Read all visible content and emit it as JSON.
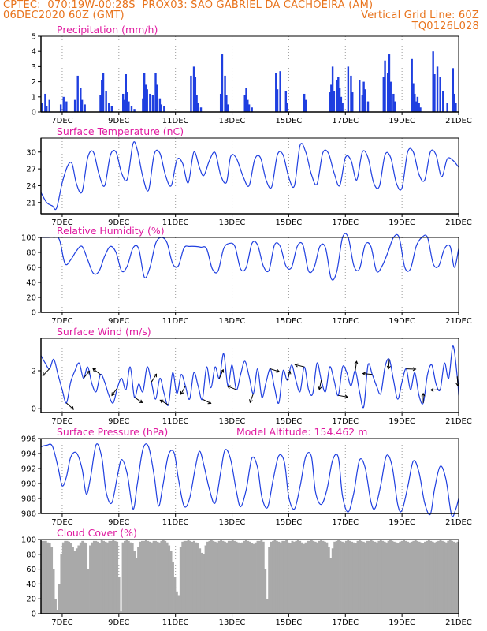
{
  "header": {
    "line1_left": "CPTEC:  070:19W-00:28S  PROX03: SAO GABRIEL DA CACHOEIRA (AM)",
    "line2_left": "06DEC2020 60Z (GMT)",
    "line2_right": "Vertical Grid Line: 60Z",
    "line3_right": "TQ0126L028"
  },
  "colors": {
    "line": "#1f3fe0",
    "cloud": "#a9a9a9",
    "title": "#e01aa0",
    "header": "#e8731c",
    "grid": "#9a9a9a"
  },
  "x_axis": {
    "start_day": 6.25,
    "end_day": 21.0,
    "tick_labels": [
      "7DEC",
      "9DEC",
      "11DEC",
      "13DEC",
      "15DEC",
      "17DEC",
      "19DEC",
      "21DEC"
    ],
    "tick_days": [
      7,
      9,
      11,
      13,
      15,
      17,
      19,
      21
    ]
  },
  "chart_data": [
    {
      "type": "bar",
      "title": "Precipitation (mm/h)",
      "ylim": [
        0,
        5
      ],
      "yticks": [
        0,
        1,
        2,
        3,
        4,
        5
      ],
      "x": [
        6.3,
        6.4,
        6.45,
        6.55,
        6.95,
        7.05,
        7.15,
        7.45,
        7.55,
        7.65,
        7.7,
        7.8,
        8.35,
        8.4,
        8.45,
        8.55,
        8.65,
        8.75,
        9.15,
        9.2,
        9.25,
        9.3,
        9.35,
        9.45,
        9.55,
        9.85,
        9.9,
        9.95,
        10.0,
        10.1,
        10.2,
        10.3,
        10.35,
        10.45,
        10.5,
        10.6,
        11.55,
        11.65,
        11.7,
        11.75,
        11.8,
        11.9,
        12.6,
        12.65,
        12.75,
        12.8,
        12.85,
        13.45,
        13.5,
        13.55,
        13.6,
        13.7,
        14.55,
        14.6,
        14.7,
        14.9,
        14.95,
        15.55,
        15.6,
        16.45,
        16.5,
        16.55,
        16.6,
        16.7,
        16.75,
        16.8,
        16.85,
        16.9,
        17.1,
        17.2,
        17.25,
        17.5,
        17.6,
        17.65,
        17.7,
        17.8,
        18.35,
        18.4,
        18.5,
        18.55,
        18.6,
        18.7,
        18.75,
        19.35,
        19.4,
        19.45,
        19.5,
        19.55,
        19.6,
        19.65,
        20.1,
        20.15,
        20.25,
        20.35,
        20.45,
        20.6,
        20.8,
        20.85,
        20.9
      ],
      "values": [
        0.6,
        1.2,
        0.4,
        0.8,
        0.5,
        1.0,
        0.7,
        0.8,
        2.4,
        1.6,
        0.8,
        0.5,
        1.1,
        2.1,
        2.6,
        1.4,
        0.6,
        0.4,
        1.2,
        0.8,
        2.5,
        1.3,
        0.7,
        0.4,
        0.2,
        0.9,
        2.6,
        1.8,
        1.5,
        1.2,
        1.1,
        2.6,
        1.8,
        0.9,
        0.5,
        0.4,
        2.4,
        3.0,
        2.3,
        1.1,
        0.6,
        0.3,
        1.2,
        3.8,
        2.4,
        1.1,
        0.5,
        1.1,
        1.6,
        0.8,
        0.5,
        0.3,
        2.6,
        1.5,
        2.7,
        1.4,
        0.6,
        1.2,
        0.8,
        1.3,
        1.8,
        3.0,
        1.4,
        2.1,
        2.3,
        1.6,
        1.0,
        0.6,
        3.0,
        2.4,
        1.3,
        2.1,
        1.1,
        2.0,
        1.5,
        0.7,
        2.3,
        3.4,
        2.6,
        3.8,
        2.0,
        1.2,
        0.7,
        3.5,
        1.9,
        1.2,
        0.7,
        1.0,
        0.6,
        0.3,
        4.0,
        2.5,
        3.0,
        2.3,
        1.4,
        0.6,
        2.9,
        1.2,
        0.6
      ]
    },
    {
      "type": "line",
      "title": "Surface Temperature (nC)",
      "ylim": [
        19,
        32.5
      ],
      "yticks": [
        21,
        24,
        27,
        30
      ],
      "x": [
        6.25,
        6.45,
        6.65,
        6.8,
        7.0,
        7.2,
        7.35,
        7.5,
        7.7,
        7.9,
        8.1,
        8.3,
        8.5,
        8.7,
        8.9,
        9.1,
        9.3,
        9.5,
        9.65,
        9.85,
        10.05,
        10.25,
        10.45,
        10.65,
        10.85,
        11.05,
        11.25,
        11.45,
        11.65,
        11.85,
        12.0,
        12.2,
        12.4,
        12.6,
        12.8,
        12.95,
        13.15,
        13.4,
        13.6,
        13.8,
        14.0,
        14.2,
        14.4,
        14.6,
        14.8,
        15.0,
        15.2,
        15.4,
        15.6,
        15.8,
        16.0,
        16.2,
        16.4,
        16.6,
        16.8,
        17.0,
        17.2,
        17.4,
        17.6,
        17.8,
        18.0,
        18.2,
        18.4,
        18.6,
        18.8,
        19.0,
        19.2,
        19.4,
        19.6,
        19.8,
        20.0,
        20.2,
        20.4,
        20.6,
        20.8,
        21.0
      ],
      "values": [
        22.8,
        21.0,
        20.4,
        20.0,
        24.5,
        27.6,
        27.9,
        24.4,
        22.9,
        29.0,
        30.0,
        26.0,
        24.0,
        29.4,
        30.0,
        26.2,
        25.2,
        31.5,
        30.4,
        25.5,
        23.2,
        29.6,
        29.8,
        25.8,
        24.0,
        28.6,
        28.0,
        24.5,
        30.0,
        27.2,
        25.8,
        28.5,
        29.9,
        25.8,
        24.6,
        29.2,
        28.9,
        25.5,
        24.0,
        28.7,
        29.0,
        25.0,
        23.8,
        29.5,
        29.5,
        25.5,
        24.0,
        31.2,
        30.0,
        26.0,
        24.3,
        29.8,
        29.8,
        26.3,
        24.0,
        29.0,
        28.5,
        25.0,
        30.0,
        29.0,
        24.5,
        23.9,
        29.5,
        29.0,
        24.5,
        23.6,
        30.0,
        30.0,
        26.0,
        25.0,
        30.0,
        29.5,
        25.6,
        28.8,
        28.5,
        27.3
      ]
    },
    {
      "type": "line",
      "title": "Relative Humidity (%)",
      "ylim": [
        0,
        100
      ],
      "yticks": [
        0,
        20,
        40,
        60,
        80,
        100
      ],
      "x": [
        6.25,
        6.5,
        6.7,
        6.9,
        7.1,
        7.3,
        7.5,
        7.7,
        7.9,
        8.1,
        8.3,
        8.5,
        8.7,
        8.9,
        9.1,
        9.3,
        9.5,
        9.7,
        9.9,
        10.1,
        10.3,
        10.5,
        10.7,
        10.9,
        11.1,
        11.3,
        11.5,
        11.7,
        11.9,
        12.1,
        12.3,
        12.5,
        12.7,
        12.9,
        13.1,
        13.3,
        13.5,
        13.7,
        13.9,
        14.1,
        14.3,
        14.5,
        14.7,
        14.9,
        15.1,
        15.3,
        15.5,
        15.7,
        15.9,
        16.1,
        16.3,
        16.5,
        16.7,
        16.9,
        17.1,
        17.3,
        17.5,
        17.7,
        17.9,
        18.1,
        18.3,
        18.5,
        18.7,
        18.9,
        19.1,
        19.3,
        19.5,
        19.7,
        19.9,
        20.1,
        20.3,
        20.5,
        20.7,
        20.85,
        21.0
      ],
      "values": [
        100,
        100,
        100,
        97,
        65,
        70,
        82,
        88,
        70,
        52,
        55,
        75,
        88,
        80,
        55,
        62,
        86,
        85,
        47,
        60,
        92,
        100,
        93,
        65,
        62,
        86,
        88,
        88,
        87,
        85,
        58,
        55,
        85,
        92,
        88,
        58,
        60,
        92,
        90,
        62,
        56,
        90,
        88,
        62,
        60,
        88,
        90,
        55,
        60,
        88,
        86,
        45,
        55,
        100,
        100,
        62,
        58,
        90,
        88,
        55,
        62,
        80,
        100,
        100,
        60,
        58,
        88,
        100,
        100,
        65,
        62,
        85,
        88,
        60,
        85
      ]
    },
    {
      "type": "line",
      "title": "Surface Wind (m/s)",
      "ylim": [
        -0.2,
        3.7
      ],
      "yticks": [
        0,
        2
      ],
      "x": [
        6.25,
        6.4,
        6.55,
        6.7,
        6.85,
        7.0,
        7.15,
        7.3,
        7.45,
        7.6,
        7.75,
        7.9,
        8.05,
        8.2,
        8.35,
        8.5,
        8.65,
        8.8,
        8.95,
        9.1,
        9.25,
        9.4,
        9.55,
        9.7,
        9.85,
        10.0,
        10.15,
        10.3,
        10.45,
        10.6,
        10.75,
        10.9,
        11.05,
        11.2,
        11.35,
        11.5,
        11.65,
        11.8,
        11.95,
        12.1,
        12.25,
        12.4,
        12.55,
        12.7,
        12.85,
        13.0,
        13.15,
        13.3,
        13.45,
        13.6,
        13.75,
        13.9,
        14.05,
        14.2,
        14.35,
        14.5,
        14.65,
        14.8,
        14.95,
        15.1,
        15.25,
        15.4,
        15.55,
        15.7,
        15.85,
        16.0,
        16.15,
        16.3,
        16.45,
        16.6,
        16.75,
        16.9,
        17.05,
        17.2,
        17.35,
        17.5,
        17.65,
        17.8,
        17.95,
        18.1,
        18.25,
        18.4,
        18.55,
        18.7,
        18.85,
        19.0,
        19.15,
        19.3,
        19.45,
        19.6,
        19.75,
        19.9,
        20.05,
        20.2,
        20.35,
        20.5,
        20.65,
        20.8,
        20.95,
        21.0
      ],
      "values": [
        2.8,
        2.4,
        2.1,
        2.6,
        1.8,
        1.0,
        0.3,
        1.4,
        2.0,
        2.4,
        1.6,
        2.2,
        1.3,
        0.9,
        1.8,
        1.4,
        0.7,
        0.3,
        1.1,
        1.6,
        1.0,
        2.2,
        0.6,
        1.3,
        0.9,
        2.2,
        1.4,
        0.5,
        1.6,
        0.8,
        0.2,
        1.9,
        0.8,
        1.8,
        1.2,
        0.5,
        1.9,
        1.2,
        0.5,
        2.2,
        1.1,
        2.2,
        1.6,
        2.9,
        1.2,
        2.3,
        1.0,
        1.8,
        2.5,
        1.7,
        0.8,
        2.1,
        0.6,
        1.4,
        2.1,
        1.1,
        0.3,
        2.0,
        1.5,
        2.3,
        1.5,
        0.9,
        2.2,
        1.0,
        0.8,
        2.4,
        1.5,
        0.9,
        2.2,
        1.5,
        0.7,
        2.2,
        1.9,
        1.2,
        2.0,
        0.9,
        0.1,
        2.3,
        1.8,
        1.2,
        0.8,
        2.2,
        2.6,
        1.5,
        0.5,
        1.4,
        2.1,
        1.0,
        1.9,
        0.7,
        0.3,
        1.8,
        2.3,
        1.3,
        1.0,
        2.4,
        1.6,
        3.3,
        1.7,
        0.7
      ]
    },
    {
      "type": "line",
      "title": "Surface Pressure (hPa)",
      "annotation": "Model Altitude: 154.462 m",
      "ylim": [
        986,
        996
      ],
      "yticks": [
        986,
        988,
        990,
        992,
        994,
        996
      ],
      "x": [
        6.25,
        6.45,
        6.65,
        6.85,
        7.0,
        7.15,
        7.3,
        7.5,
        7.7,
        7.85,
        8.0,
        8.2,
        8.4,
        8.55,
        8.75,
        8.95,
        9.1,
        9.3,
        9.5,
        9.65,
        9.85,
        10.05,
        10.25,
        10.4,
        10.55,
        10.75,
        10.95,
        11.1,
        11.3,
        11.5,
        11.7,
        11.85,
        12.0,
        12.2,
        12.4,
        12.6,
        12.75,
        12.95,
        13.15,
        13.3,
        13.5,
        13.7,
        13.9,
        14.05,
        14.25,
        14.45,
        14.65,
        14.85,
        15.0,
        15.2,
        15.4,
        15.6,
        15.8,
        15.95,
        16.15,
        16.35,
        16.55,
        16.75,
        16.9,
        17.1,
        17.3,
        17.5,
        17.7,
        17.9,
        18.05,
        18.25,
        18.45,
        18.65,
        18.85,
        19.0,
        19.2,
        19.4,
        19.6,
        19.8,
        20.0,
        20.15,
        20.35,
        20.55,
        20.75,
        20.9,
        21.0
      ],
      "values": [
        994.9,
        995.1,
        995.0,
        992.2,
        989.7,
        990.9,
        993.5,
        994.1,
        992.0,
        988.6,
        990.8,
        995.2,
        993.4,
        988.9,
        987.4,
        991.0,
        993.2,
        991.2,
        986.6,
        989.9,
        994.6,
        994.9,
        991.0,
        987.0,
        989.6,
        993.8,
        994.1,
        990.7,
        987.0,
        988.0,
        992.1,
        994.3,
        992.5,
        989.2,
        987.4,
        991.6,
        994.5,
        993.2,
        989.0,
        986.9,
        989.2,
        993.4,
        992.1,
        988.2,
        986.8,
        990.5,
        993.7,
        992.8,
        988.2,
        986.6,
        989.6,
        993.6,
        993.6,
        988.8,
        987.2,
        989.2,
        993.1,
        993.5,
        988.3,
        986.2,
        988.8,
        993.1,
        992.1,
        987.6,
        986.7,
        989.8,
        993.7,
        992.3,
        987.2,
        986.4,
        989.5,
        993.0,
        991.5,
        987.4,
        985.9,
        989.3,
        992.3,
        990.6,
        985.8,
        986.6,
        988.0
      ]
    },
    {
      "type": "bar",
      "title": "Cloud Cover (%)",
      "ylim": [
        0,
        100
      ],
      "yticks": [
        0,
        20,
        40,
        60,
        80,
        100
      ],
      "x_start": 6.25,
      "x_end": 21.0,
      "values": [
        98,
        98,
        98,
        96,
        95,
        90,
        60,
        20,
        5,
        40,
        80,
        96,
        98,
        98,
        97,
        95,
        90,
        85,
        88,
        92,
        96,
        98,
        96,
        95,
        60,
        92,
        96,
        98,
        98,
        97,
        95,
        99,
        98,
        97,
        96,
        98,
        98,
        99,
        98,
        97,
        50,
        3,
        96,
        98,
        99,
        98,
        96,
        95,
        85,
        75,
        90,
        97,
        98,
        98,
        99,
        98,
        97,
        96,
        98,
        98,
        97,
        96,
        98,
        99,
        98,
        96,
        92,
        85,
        70,
        50,
        30,
        25,
        90,
        97,
        98,
        98,
        99,
        98,
        97,
        98,
        96,
        95,
        88,
        82,
        80,
        92,
        97,
        98,
        99,
        98,
        97,
        96,
        98,
        99,
        98,
        97,
        96,
        98,
        98,
        99,
        98,
        97,
        96,
        95,
        96,
        98,
        99,
        98,
        97,
        95,
        94,
        96,
        98,
        98,
        99,
        97,
        60,
        20,
        90,
        97,
        98,
        99,
        98,
        97,
        96,
        98,
        98,
        99,
        96,
        95,
        98,
        97,
        98,
        99,
        98,
        96,
        94,
        96,
        98,
        98,
        99,
        98,
        97,
        96,
        98,
        99,
        98,
        97,
        96,
        90,
        75,
        88,
        97,
        98,
        99,
        98,
        97,
        96,
        98,
        99,
        98,
        97,
        96,
        95,
        98,
        99,
        98,
        97,
        96,
        98,
        98,
        99,
        98,
        97,
        96,
        98,
        99,
        98,
        97,
        96,
        98,
        99,
        98,
        97,
        96,
        95,
        97,
        98,
        99,
        98,
        97,
        96,
        97,
        98,
        99,
        98,
        97,
        96,
        95,
        97,
        98,
        99,
        98,
        97,
        96,
        97,
        98,
        99,
        98,
        97,
        96,
        98,
        99,
        98,
        97,
        96,
        97
      ]
    }
  ]
}
